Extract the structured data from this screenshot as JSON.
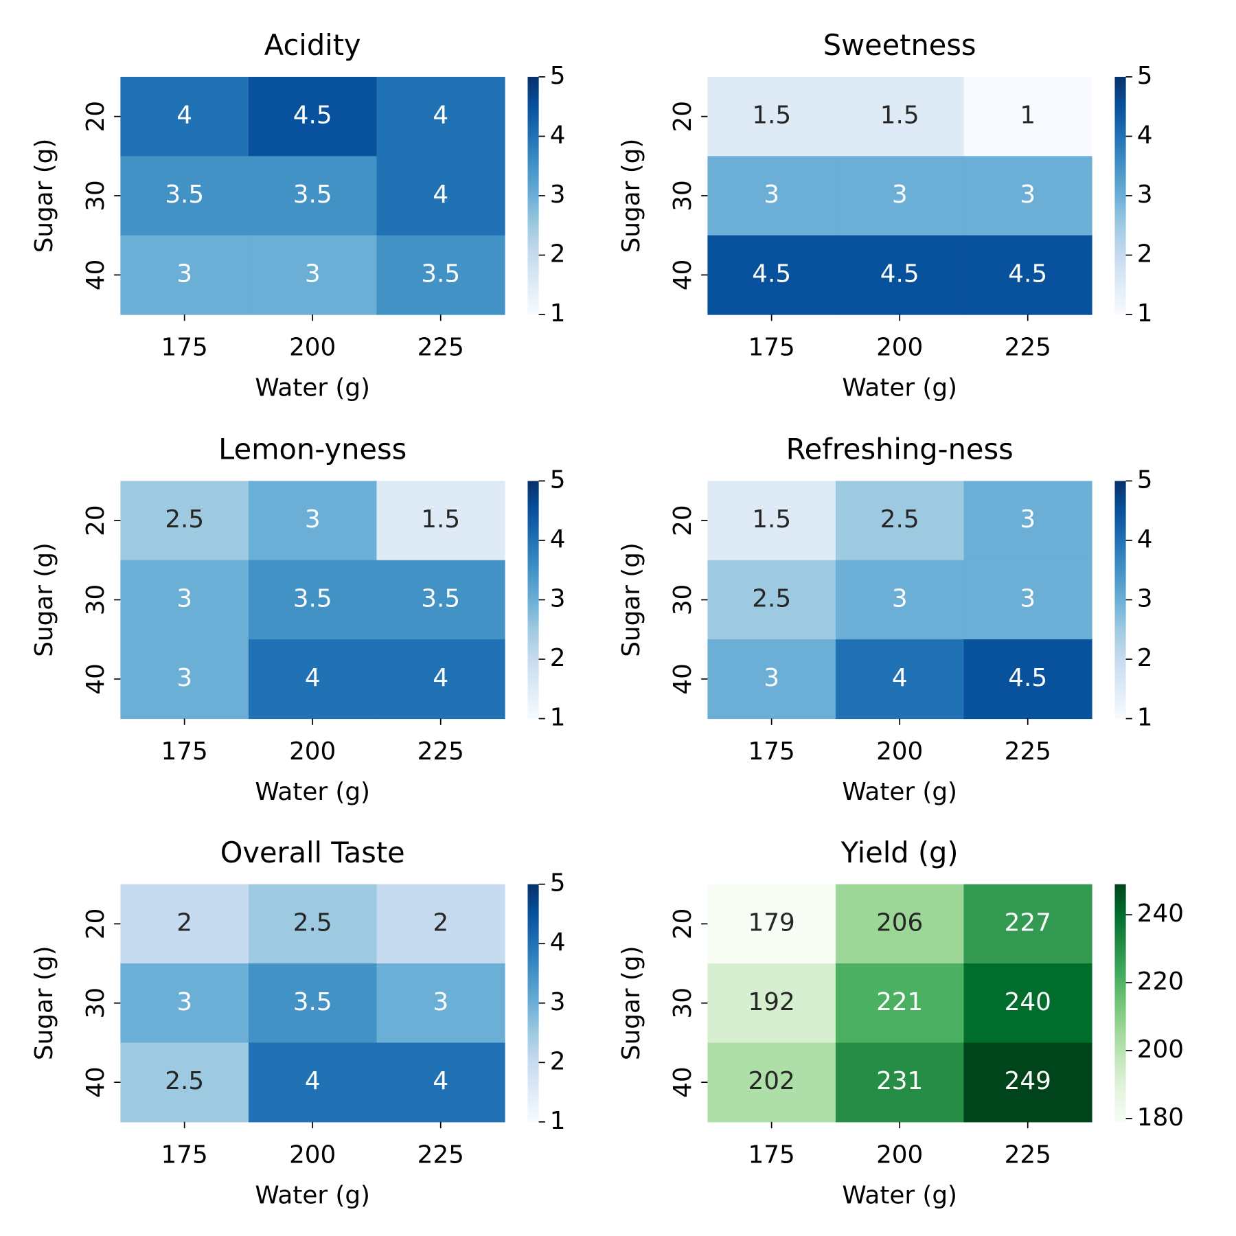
{
  "chart_data": [
    {
      "type": "heatmap",
      "title": "Acidity",
      "x_label": "Water (g)",
      "y_label": "Sugar (g)",
      "x": [
        "175",
        "200",
        "225"
      ],
      "y": [
        "20",
        "30",
        "40"
      ],
      "values": [
        [
          4,
          4.5,
          4
        ],
        [
          3.5,
          3.5,
          4
        ],
        [
          3,
          3,
          3.5
        ]
      ],
      "clim": [
        1,
        5
      ],
      "cticks": [
        1,
        2,
        3,
        4,
        5
      ],
      "colormap": [
        "#f7fbff",
        "#deebf7",
        "#c6dbef",
        "#9ecae1",
        "#6baed6",
        "#4292c6",
        "#2171b5",
        "#08519c",
        "#08306b"
      ]
    },
    {
      "type": "heatmap",
      "title": "Sweetness",
      "x_label": "Water (g)",
      "y_label": "Sugar (g)",
      "x": [
        "175",
        "200",
        "225"
      ],
      "y": [
        "20",
        "30",
        "40"
      ],
      "values": [
        [
          1.5,
          1.5,
          1
        ],
        [
          3,
          3,
          3
        ],
        [
          4.5,
          4.5,
          4.5
        ]
      ],
      "clim": [
        1,
        5
      ],
      "cticks": [
        1,
        2,
        3,
        4,
        5
      ],
      "colormap": [
        "#f7fbff",
        "#deebf7",
        "#c6dbef",
        "#9ecae1",
        "#6baed6",
        "#4292c6",
        "#2171b5",
        "#08519c",
        "#08306b"
      ]
    },
    {
      "type": "heatmap",
      "title": "Lemon-yness",
      "x_label": "Water (g)",
      "y_label": "Sugar (g)",
      "x": [
        "175",
        "200",
        "225"
      ],
      "y": [
        "20",
        "30",
        "40"
      ],
      "values": [
        [
          2.5,
          3,
          1.5
        ],
        [
          3,
          3.5,
          3.5
        ],
        [
          3,
          4,
          4
        ]
      ],
      "clim": [
        1,
        5
      ],
      "cticks": [
        1,
        2,
        3,
        4,
        5
      ],
      "colormap": [
        "#f7fbff",
        "#deebf7",
        "#c6dbef",
        "#9ecae1",
        "#6baed6",
        "#4292c6",
        "#2171b5",
        "#08519c",
        "#08306b"
      ]
    },
    {
      "type": "heatmap",
      "title": "Refreshing-ness",
      "x_label": "Water (g)",
      "y_label": "Sugar (g)",
      "x": [
        "175",
        "200",
        "225"
      ],
      "y": [
        "20",
        "30",
        "40"
      ],
      "values": [
        [
          1.5,
          2.5,
          3
        ],
        [
          2.5,
          3,
          3
        ],
        [
          3,
          4,
          4.5
        ]
      ],
      "clim": [
        1,
        5
      ],
      "cticks": [
        1,
        2,
        3,
        4,
        5
      ],
      "colormap": [
        "#f7fbff",
        "#deebf7",
        "#c6dbef",
        "#9ecae1",
        "#6baed6",
        "#4292c6",
        "#2171b5",
        "#08519c",
        "#08306b"
      ]
    },
    {
      "type": "heatmap",
      "title": "Overall Taste",
      "x_label": "Water (g)",
      "y_label": "Sugar (g)",
      "x": [
        "175",
        "200",
        "225"
      ],
      "y": [
        "20",
        "30",
        "40"
      ],
      "values": [
        [
          2,
          2.5,
          2
        ],
        [
          3,
          3.5,
          3
        ],
        [
          2.5,
          4,
          4
        ]
      ],
      "clim": [
        1,
        5
      ],
      "cticks": [
        1,
        2,
        3,
        4,
        5
      ],
      "colormap": [
        "#f7fbff",
        "#deebf7",
        "#c6dbef",
        "#9ecae1",
        "#6baed6",
        "#4292c6",
        "#2171b5",
        "#08519c",
        "#08306b"
      ]
    },
    {
      "type": "heatmap",
      "title": "Yield (g)",
      "x_label": "Water (g)",
      "y_label": "Sugar (g)",
      "x": [
        "175",
        "200",
        "225"
      ],
      "y": [
        "20",
        "30",
        "40"
      ],
      "values": [
        [
          179,
          206,
          227
        ],
        [
          192,
          221,
          240
        ],
        [
          202,
          231,
          249
        ]
      ],
      "clim": [
        179,
        249
      ],
      "cticks": [
        180,
        200,
        220,
        240
      ],
      "colormap": [
        "#f7fcf5",
        "#e5f5e0",
        "#c7e9c0",
        "#a1d99b",
        "#74c476",
        "#41ab5d",
        "#238b45",
        "#006d2c",
        "#00441b"
      ]
    }
  ]
}
